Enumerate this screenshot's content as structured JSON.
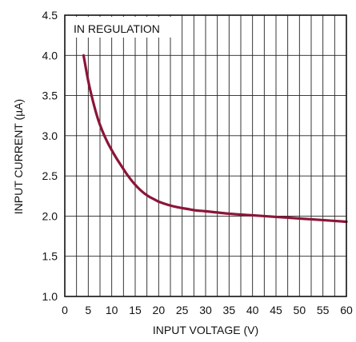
{
  "chart_data": {
    "type": "line",
    "title": "",
    "xlabel": "INPUT VOLTAGE (V)",
    "ylabel": "INPUT CURRENT (µA)",
    "xlim": [
      0,
      60
    ],
    "ylim": [
      1.0,
      4.5
    ],
    "x_ticks": [
      0,
      5,
      10,
      15,
      20,
      25,
      30,
      35,
      40,
      45,
      50,
      55,
      60
    ],
    "x_tick_labels": [
      "0",
      "5",
      "10",
      "15",
      "20",
      "25",
      "30",
      "35",
      "40",
      "45",
      "50",
      "55",
      "60"
    ],
    "y_ticks": [
      1.0,
      1.5,
      2.0,
      2.5,
      3.0,
      3.5,
      4.0,
      4.5
    ],
    "y_tick_labels": [
      "1.0",
      "1.5",
      "2.0",
      "2.5",
      "3.0",
      "3.5",
      "4.0",
      "4.5"
    ],
    "x_minor_step": 2.5,
    "grid": true,
    "annotation": "IN REGULATION",
    "series": [
      {
        "color": "#8b1538",
        "x": [
          4,
          5,
          6,
          7,
          8,
          9,
          10,
          11,
          12,
          13,
          14,
          15,
          16,
          17,
          18,
          19,
          20,
          22,
          24,
          26,
          28,
          30,
          35,
          40,
          45,
          50,
          55,
          60
        ],
        "y": [
          4.0,
          3.68,
          3.43,
          3.22,
          3.06,
          2.93,
          2.82,
          2.72,
          2.63,
          2.54,
          2.46,
          2.39,
          2.33,
          2.28,
          2.24,
          2.21,
          2.18,
          2.14,
          2.11,
          2.09,
          2.07,
          2.06,
          2.03,
          2.01,
          1.99,
          1.97,
          1.95,
          1.93
        ]
      }
    ]
  }
}
